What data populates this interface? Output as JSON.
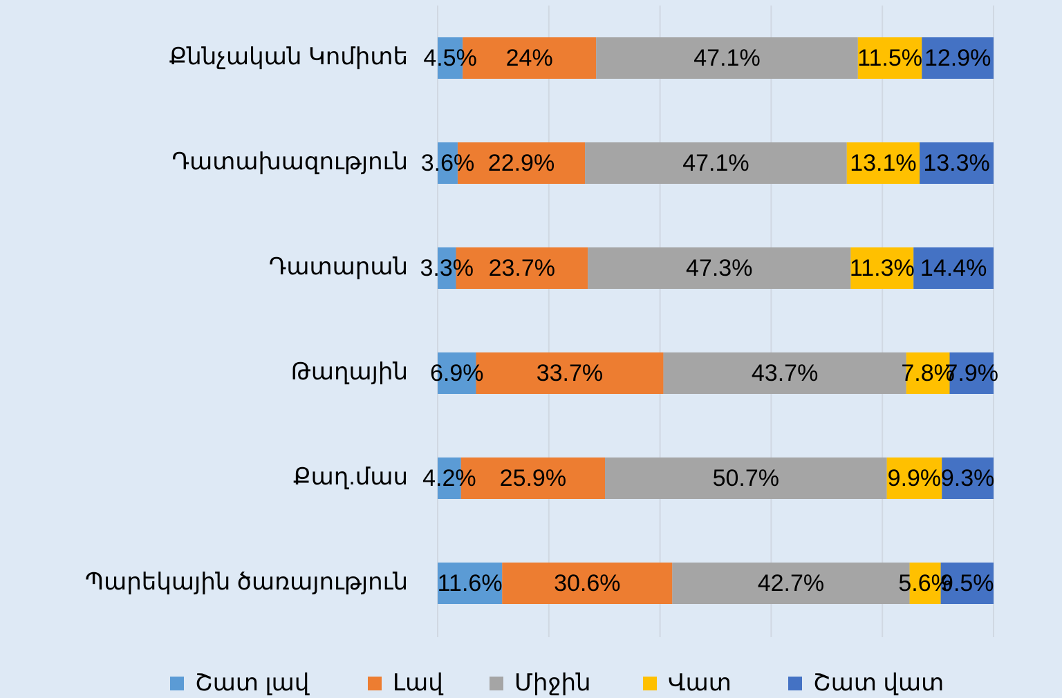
{
  "chart_data": {
    "type": "stacked_bar_horizontal",
    "categories": [
      "Քննչական Կոմիտե",
      "Դատախազություն",
      "Դատարան",
      "Թաղային",
      "Քաղ.մաս",
      "Պարեկային ծառայություն"
    ],
    "series": [
      {
        "name": "Շատ լավ",
        "color": "#5b9bd5",
        "values": [
          4.5,
          3.6,
          3.3,
          6.9,
          4.2,
          11.6
        ],
        "value_labels": [
          "4.5%",
          "3.6%",
          "3.3%",
          "6.9%",
          "4.2%",
          "11.6%"
        ]
      },
      {
        "name": "Լավ",
        "color": "#ed7d31",
        "values": [
          24,
          22.9,
          23.7,
          33.7,
          25.9,
          30.6
        ],
        "value_labels": [
          "24%",
          "22.9%",
          "23.7%",
          "33.7%",
          "25.9%",
          "30.6%"
        ]
      },
      {
        "name": "Միջին",
        "color": "#a5a5a5",
        "values": [
          47.1,
          47.1,
          47.3,
          43.7,
          50.7,
          42.7
        ],
        "value_labels": [
          "47.1%",
          "47.1%",
          "47.3%",
          "43.7%",
          "50.7%",
          "42.7%"
        ]
      },
      {
        "name": "Վատ",
        "color": "#ffc000",
        "values": [
          11.5,
          13.1,
          11.3,
          7.8,
          9.9,
          5.6
        ],
        "value_labels": [
          "11.5%",
          "13.1%",
          "11.3%",
          "7.8%",
          "9.9%",
          "5.6%"
        ]
      },
      {
        "name": "Շատ վատ",
        "color": "#4472c4",
        "values": [
          12.9,
          13.3,
          14.4,
          7.9,
          9.3,
          9.5
        ],
        "value_labels": [
          "12.9%",
          "13.3%",
          "14.4%",
          "7.9%",
          "9.3%",
          "9.5%"
        ]
      }
    ],
    "xlim": [
      0,
      100
    ],
    "xticks": [
      0,
      20,
      40,
      60,
      80,
      100
    ],
    "grid": true,
    "legend": "bottom"
  }
}
